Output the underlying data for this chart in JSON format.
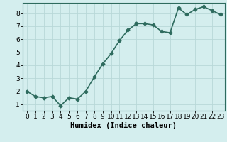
{
  "x": [
    0,
    1,
    2,
    3,
    4,
    5,
    6,
    7,
    8,
    9,
    10,
    11,
    12,
    13,
    14,
    15,
    16,
    17,
    18,
    19,
    20,
    21,
    22,
    23
  ],
  "y": [
    2.0,
    1.6,
    1.5,
    1.6,
    0.9,
    1.5,
    1.4,
    2.0,
    3.1,
    4.1,
    4.9,
    5.9,
    6.7,
    7.2,
    7.2,
    7.1,
    6.6,
    6.5,
    8.4,
    7.9,
    8.3,
    8.5,
    8.2,
    7.9
  ],
  "line_color": "#2e6b5e",
  "marker": "D",
  "marker_size": 2.5,
  "bg_color": "#d4eeee",
  "grid_color": "#b8d8d8",
  "xlabel": "Humidex (Indice chaleur)",
  "xlabel_fontsize": 7.5,
  "ylabel_ticks": [
    1,
    2,
    3,
    4,
    5,
    6,
    7,
    8
  ],
  "xlim": [
    -0.5,
    23.5
  ],
  "ylim": [
    0.5,
    8.8
  ],
  "xtick_labels": [
    "0",
    "1",
    "2",
    "3",
    "4",
    "5",
    "6",
    "7",
    "8",
    "9",
    "10",
    "11",
    "12",
    "13",
    "14",
    "15",
    "16",
    "17",
    "18",
    "19",
    "20",
    "21",
    "22",
    "23"
  ],
  "tick_fontsize": 6.5,
  "linewidth": 1.2
}
